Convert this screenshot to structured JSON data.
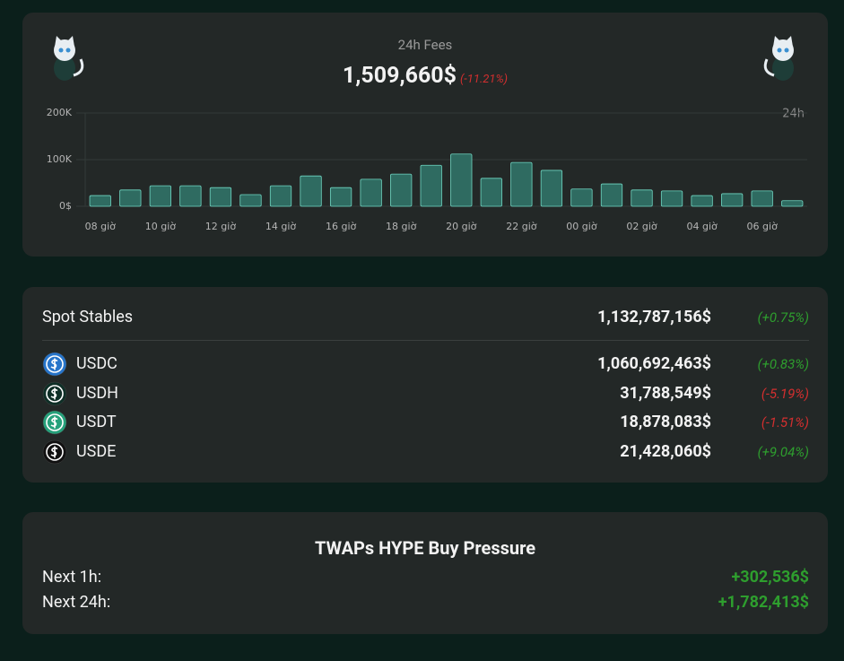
{
  "fees": {
    "title": "24h Fees",
    "value": "1,509,660$",
    "change": "(-11.21%)",
    "change_color": "#d32f2f"
  },
  "chart_data": {
    "type": "bar",
    "corner_label": "24h",
    "categories": [
      "08 giờ",
      null,
      "10 giờ",
      null,
      "12 giờ",
      null,
      "14 giờ",
      null,
      "16 giờ",
      null,
      "18 giờ",
      null,
      "20 giờ",
      null,
      "22 giờ",
      null,
      "00 giờ",
      null,
      "02 giờ",
      null,
      "04 giờ",
      null,
      "06 giờ",
      null
    ],
    "values": [
      23000,
      35000,
      44000,
      44000,
      40000,
      25000,
      44000,
      65000,
      40000,
      58000,
      69000,
      88000,
      112000,
      60000,
      94000,
      77000,
      37000,
      48000,
      35000,
      33000,
      23000,
      27000,
      33000,
      12000
    ],
    "color": "#2f6b61",
    "edge_color": "#6fd6c2",
    "ylim": [
      0,
      200000
    ],
    "yticks": [
      {
        "value": 0,
        "label": "0$"
      },
      {
        "value": 100000,
        "label": "100K"
      },
      {
        "value": 200000,
        "label": "200K"
      }
    ],
    "grid": true
  },
  "stables": {
    "total": {
      "name": "Spot Stables",
      "value": "1,132,787,156$",
      "change": "(+0.75%)",
      "change_color": "#2e9e2e"
    },
    "rows": [
      {
        "name": "USDC",
        "value": "1,060,692,463$",
        "change": "(+0.83%)",
        "change_color": "#2e9e2e",
        "icon_color": "#2775ca"
      },
      {
        "name": "USDH",
        "value": "31,788,549$",
        "change": "(-5.19%)",
        "change_color": "#d32f2f",
        "icon_color": "#0f2f27"
      },
      {
        "name": "USDT",
        "value": "18,878,083$",
        "change": "(-1.51%)",
        "change_color": "#d32f2f",
        "icon_color": "#26a17b"
      },
      {
        "name": "USDE",
        "value": "21,428,060$",
        "change": "(+9.04%)",
        "change_color": "#2e9e2e",
        "icon_color": "#111111"
      }
    ]
  },
  "twap": {
    "title": "TWAPs HYPE Buy Pressure",
    "rows": [
      {
        "label": "Next 1h:",
        "value": "+302,536$"
      },
      {
        "label": "Next 24h:",
        "value": "+1,782,413$"
      }
    ],
    "value_color": "#2e9e2e"
  }
}
